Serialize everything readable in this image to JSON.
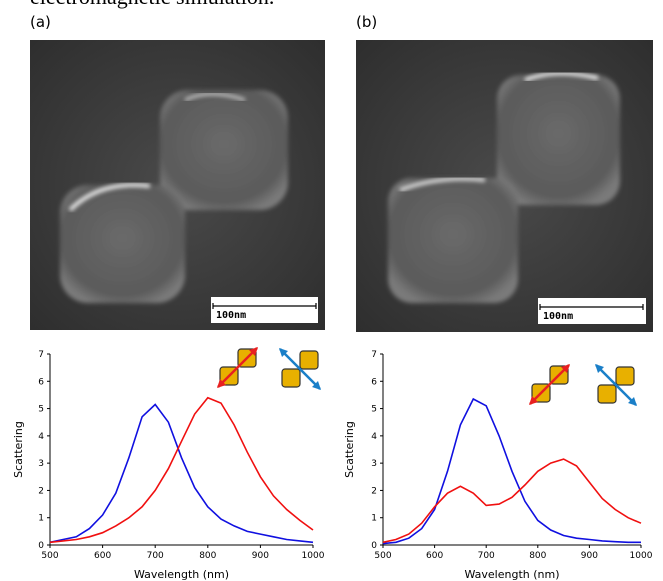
{
  "figure": {
    "caption_fragment": "electromagnetic simulation.",
    "panels": [
      {
        "label": "(a)",
        "scale_bar": "100nm"
      },
      {
        "label": "(b)",
        "scale_bar": "100nm"
      }
    ]
  },
  "chart_data": [
    {
      "type": "line",
      "x_label": "Wavelength (nm)",
      "y_label": "Scattering",
      "x": [
        500,
        525,
        550,
        575,
        600,
        625,
        650,
        675,
        700,
        725,
        750,
        775,
        800,
        825,
        850,
        875,
        900,
        925,
        950,
        975,
        1000
      ],
      "series": [
        {
          "color": "#1010e0",
          "values": [
            0.1,
            0.2,
            0.3,
            0.6,
            1.1,
            1.9,
            3.2,
            4.7,
            5.15,
            4.5,
            3.2,
            2.1,
            1.4,
            0.95,
            0.7,
            0.5,
            0.4,
            0.3,
            0.2,
            0.15,
            0.1
          ]
        },
        {
          "color": "#f01010",
          "values": [
            0.1,
            0.15,
            0.2,
            0.3,
            0.45,
            0.7,
            1.0,
            1.4,
            2.0,
            2.8,
            3.8,
            4.8,
            5.4,
            5.2,
            4.4,
            3.4,
            2.5,
            1.8,
            1.3,
            0.9,
            0.55
          ]
        }
      ],
      "xlim": [
        500,
        1000
      ],
      "xticks": [
        500,
        600,
        700,
        800,
        900,
        1000
      ],
      "ylim": [
        0,
        7
      ],
      "yticks": [
        0,
        1,
        2,
        3,
        4,
        5,
        6,
        7
      ]
    },
    {
      "type": "line",
      "x_label": "Wavelength (nm)",
      "y_label": "Scattering",
      "x": [
        500,
        525,
        550,
        575,
        600,
        625,
        650,
        675,
        700,
        725,
        750,
        775,
        800,
        825,
        850,
        875,
        900,
        925,
        950,
        975,
        1000
      ],
      "series": [
        {
          "color": "#1010e0",
          "values": [
            0.05,
            0.1,
            0.25,
            0.6,
            1.3,
            2.7,
            4.4,
            5.35,
            5.1,
            4.0,
            2.7,
            1.6,
            0.9,
            0.55,
            0.35,
            0.25,
            0.2,
            0.15,
            0.12,
            0.1,
            0.1
          ]
        },
        {
          "color": "#f01010",
          "values": [
            0.1,
            0.2,
            0.4,
            0.8,
            1.4,
            1.9,
            2.15,
            1.9,
            1.45,
            1.5,
            1.75,
            2.2,
            2.7,
            3.0,
            3.15,
            2.9,
            2.3,
            1.7,
            1.3,
            1.0,
            0.8
          ]
        }
      ],
      "xlim": [
        500,
        1000
      ],
      "xticks": [
        500,
        600,
        700,
        800,
        900,
        1000
      ],
      "ylim": [
        0,
        7
      ],
      "yticks": [
        0,
        1,
        2,
        3,
        4,
        5,
        6,
        7
      ]
    }
  ]
}
